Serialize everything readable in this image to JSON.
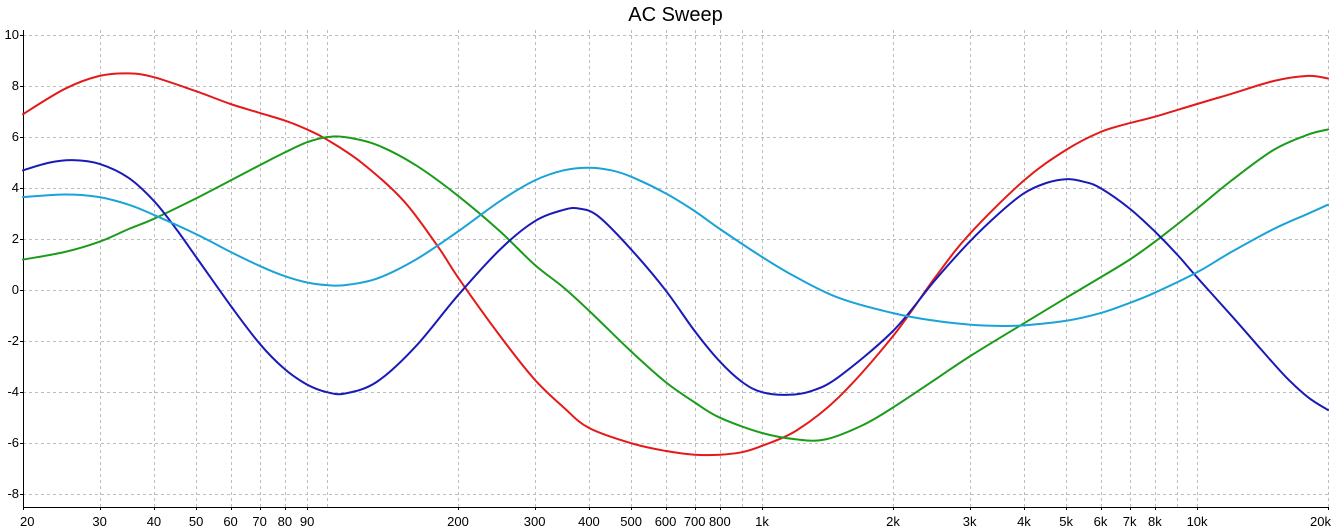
{
  "chart_data": {
    "type": "line",
    "title": "AC Sweep",
    "xlabel": "",
    "ylabel": "",
    "x_scale": "log",
    "xlim": [
      20,
      20000
    ],
    "ylim": [
      -8.5,
      10.2
    ],
    "grid": true,
    "legend": "none",
    "x_ticks": [
      {
        "value": 20,
        "label": "20"
      },
      {
        "value": 30,
        "label": "30"
      },
      {
        "value": 40,
        "label": "40"
      },
      {
        "value": 50,
        "label": "50"
      },
      {
        "value": 60,
        "label": "60"
      },
      {
        "value": 70,
        "label": "70"
      },
      {
        "value": 80,
        "label": "80"
      },
      {
        "value": 90,
        "label": "90"
      },
      {
        "value": 200,
        "label": "200"
      },
      {
        "value": 300,
        "label": "300"
      },
      {
        "value": 400,
        "label": "400"
      },
      {
        "value": 500,
        "label": "500"
      },
      {
        "value": 600,
        "label": "600"
      },
      {
        "value": 700,
        "label": "700"
      },
      {
        "value": 800,
        "label": "800"
      },
      {
        "value": 1000,
        "label": "1k"
      },
      {
        "value": 2000,
        "label": "2k"
      },
      {
        "value": 3000,
        "label": "3k"
      },
      {
        "value": 4000,
        "label": "4k"
      },
      {
        "value": 5000,
        "label": "5k"
      },
      {
        "value": 6000,
        "label": "6k"
      },
      {
        "value": 7000,
        "label": "7k"
      },
      {
        "value": 8000,
        "label": "8k"
      },
      {
        "value": 10000,
        "label": "10k"
      },
      {
        "value": 20000,
        "label": "20k"
      }
    ],
    "x_grid": [
      20,
      30,
      40,
      50,
      60,
      70,
      80,
      90,
      100,
      200,
      300,
      400,
      500,
      600,
      700,
      800,
      900,
      1000,
      2000,
      3000,
      4000,
      5000,
      6000,
      7000,
      8000,
      9000,
      10000,
      20000
    ],
    "y_ticks": [
      {
        "value": 10,
        "label": "10"
      },
      {
        "value": 8,
        "label": "8"
      },
      {
        "value": 6,
        "label": "6"
      },
      {
        "value": 4,
        "label": "4"
      },
      {
        "value": 2,
        "label": "2"
      },
      {
        "value": 0,
        "label": "0"
      },
      {
        "value": -2,
        "label": "-2"
      },
      {
        "value": -4,
        "label": "-4"
      },
      {
        "value": -6,
        "label": "-6"
      },
      {
        "value": -8,
        "label": "-8"
      }
    ],
    "series": [
      {
        "color": "#e41a1a",
        "points": [
          [
            20,
            6.9
          ],
          [
            25,
            7.9
          ],
          [
            30,
            8.4
          ],
          [
            35,
            8.5
          ],
          [
            40,
            8.35
          ],
          [
            50,
            7.8
          ],
          [
            60,
            7.3
          ],
          [
            70,
            6.95
          ],
          [
            80,
            6.65
          ],
          [
            90,
            6.3
          ],
          [
            100,
            5.9
          ],
          [
            120,
            5.0
          ],
          [
            150,
            3.5
          ],
          [
            180,
            1.7
          ],
          [
            200,
            0.5
          ],
          [
            250,
            -1.8
          ],
          [
            300,
            -3.5
          ],
          [
            350,
            -4.6
          ],
          [
            400,
            -5.4
          ],
          [
            500,
            -6.0
          ],
          [
            600,
            -6.3
          ],
          [
            700,
            -6.45
          ],
          [
            800,
            -6.45
          ],
          [
            900,
            -6.35
          ],
          [
            1000,
            -6.1
          ],
          [
            1200,
            -5.5
          ],
          [
            1500,
            -4.2
          ],
          [
            2000,
            -1.8
          ],
          [
            2500,
            0.5
          ],
          [
            3000,
            2.2
          ],
          [
            4000,
            4.3
          ],
          [
            5000,
            5.5
          ],
          [
            6000,
            6.2
          ],
          [
            7000,
            6.55
          ],
          [
            8000,
            6.8
          ],
          [
            10000,
            7.3
          ],
          [
            12000,
            7.7
          ],
          [
            15000,
            8.2
          ],
          [
            18000,
            8.4
          ],
          [
            20000,
            8.3
          ]
        ]
      },
      {
        "color": "#1a9c1a",
        "points": [
          [
            20,
            1.2
          ],
          [
            25,
            1.5
          ],
          [
            30,
            1.9
          ],
          [
            35,
            2.4
          ],
          [
            40,
            2.8
          ],
          [
            50,
            3.6
          ],
          [
            60,
            4.3
          ],
          [
            70,
            4.9
          ],
          [
            80,
            5.4
          ],
          [
            90,
            5.8
          ],
          [
            100,
            6.0
          ],
          [
            110,
            6.0
          ],
          [
            130,
            5.7
          ],
          [
            160,
            4.9
          ],
          [
            200,
            3.7
          ],
          [
            250,
            2.3
          ],
          [
            300,
            1.0
          ],
          [
            350,
            0.1
          ],
          [
            400,
            -0.8
          ],
          [
            500,
            -2.4
          ],
          [
            600,
            -3.6
          ],
          [
            700,
            -4.4
          ],
          [
            800,
            -5.0
          ],
          [
            1000,
            -5.6
          ],
          [
            1200,
            -5.85
          ],
          [
            1400,
            -5.85
          ],
          [
            1700,
            -5.3
          ],
          [
            2000,
            -4.6
          ],
          [
            2500,
            -3.5
          ],
          [
            3000,
            -2.6
          ],
          [
            4000,
            -1.3
          ],
          [
            5000,
            -0.3
          ],
          [
            6000,
            0.5
          ],
          [
            7000,
            1.2
          ],
          [
            8000,
            1.9
          ],
          [
            10000,
            3.2
          ],
          [
            12000,
            4.3
          ],
          [
            15000,
            5.5
          ],
          [
            18000,
            6.1
          ],
          [
            20000,
            6.3
          ]
        ]
      },
      {
        "color": "#1a1ab8",
        "points": [
          [
            20,
            4.7
          ],
          [
            23,
            5.0
          ],
          [
            26,
            5.1
          ],
          [
            30,
            4.95
          ],
          [
            35,
            4.4
          ],
          [
            40,
            3.5
          ],
          [
            45,
            2.4
          ],
          [
            50,
            1.3
          ],
          [
            60,
            -0.6
          ],
          [
            70,
            -2.1
          ],
          [
            80,
            -3.1
          ],
          [
            90,
            -3.7
          ],
          [
            100,
            -4.0
          ],
          [
            110,
            -4.05
          ],
          [
            130,
            -3.6
          ],
          [
            160,
            -2.2
          ],
          [
            200,
            -0.2
          ],
          [
            250,
            1.6
          ],
          [
            300,
            2.7
          ],
          [
            350,
            3.15
          ],
          [
            380,
            3.2
          ],
          [
            420,
            2.9
          ],
          [
            500,
            1.6
          ],
          [
            600,
            0.0
          ],
          [
            700,
            -1.6
          ],
          [
            800,
            -2.8
          ],
          [
            900,
            -3.6
          ],
          [
            1000,
            -4.0
          ],
          [
            1150,
            -4.1
          ],
          [
            1300,
            -3.95
          ],
          [
            1500,
            -3.4
          ],
          [
            2000,
            -1.6
          ],
          [
            2500,
            0.4
          ],
          [
            3000,
            1.9
          ],
          [
            3500,
            3.0
          ],
          [
            4000,
            3.8
          ],
          [
            4500,
            4.2
          ],
          [
            5000,
            4.35
          ],
          [
            5500,
            4.25
          ],
          [
            6000,
            4.0
          ],
          [
            7000,
            3.2
          ],
          [
            8000,
            2.3
          ],
          [
            9000,
            1.4
          ],
          [
            10000,
            0.5
          ],
          [
            12000,
            -1.0
          ],
          [
            14000,
            -2.3
          ],
          [
            16000,
            -3.4
          ],
          [
            18000,
            -4.2
          ],
          [
            20000,
            -4.7
          ]
        ]
      },
      {
        "color": "#1aa3d8",
        "points": [
          [
            20,
            3.65
          ],
          [
            25,
            3.75
          ],
          [
            30,
            3.65
          ],
          [
            35,
            3.35
          ],
          [
            40,
            2.95
          ],
          [
            50,
            2.2
          ],
          [
            60,
            1.5
          ],
          [
            70,
            0.95
          ],
          [
            80,
            0.55
          ],
          [
            90,
            0.3
          ],
          [
            100,
            0.2
          ],
          [
            110,
            0.2
          ],
          [
            130,
            0.45
          ],
          [
            160,
            1.2
          ],
          [
            200,
            2.3
          ],
          [
            250,
            3.5
          ],
          [
            300,
            4.3
          ],
          [
            350,
            4.7
          ],
          [
            400,
            4.8
          ],
          [
            450,
            4.7
          ],
          [
            500,
            4.45
          ],
          [
            600,
            3.8
          ],
          [
            700,
            3.1
          ],
          [
            800,
            2.4
          ],
          [
            1000,
            1.3
          ],
          [
            1200,
            0.5
          ],
          [
            1500,
            -0.3
          ],
          [
            2000,
            -0.9
          ],
          [
            2500,
            -1.2
          ],
          [
            3000,
            -1.35
          ],
          [
            3500,
            -1.4
          ],
          [
            4000,
            -1.38
          ],
          [
            5000,
            -1.2
          ],
          [
            6000,
            -0.9
          ],
          [
            7000,
            -0.5
          ],
          [
            8000,
            -0.1
          ],
          [
            10000,
            0.7
          ],
          [
            12000,
            1.5
          ],
          [
            15000,
            2.4
          ],
          [
            18000,
            3.0
          ],
          [
            20000,
            3.35
          ]
        ]
      }
    ]
  }
}
